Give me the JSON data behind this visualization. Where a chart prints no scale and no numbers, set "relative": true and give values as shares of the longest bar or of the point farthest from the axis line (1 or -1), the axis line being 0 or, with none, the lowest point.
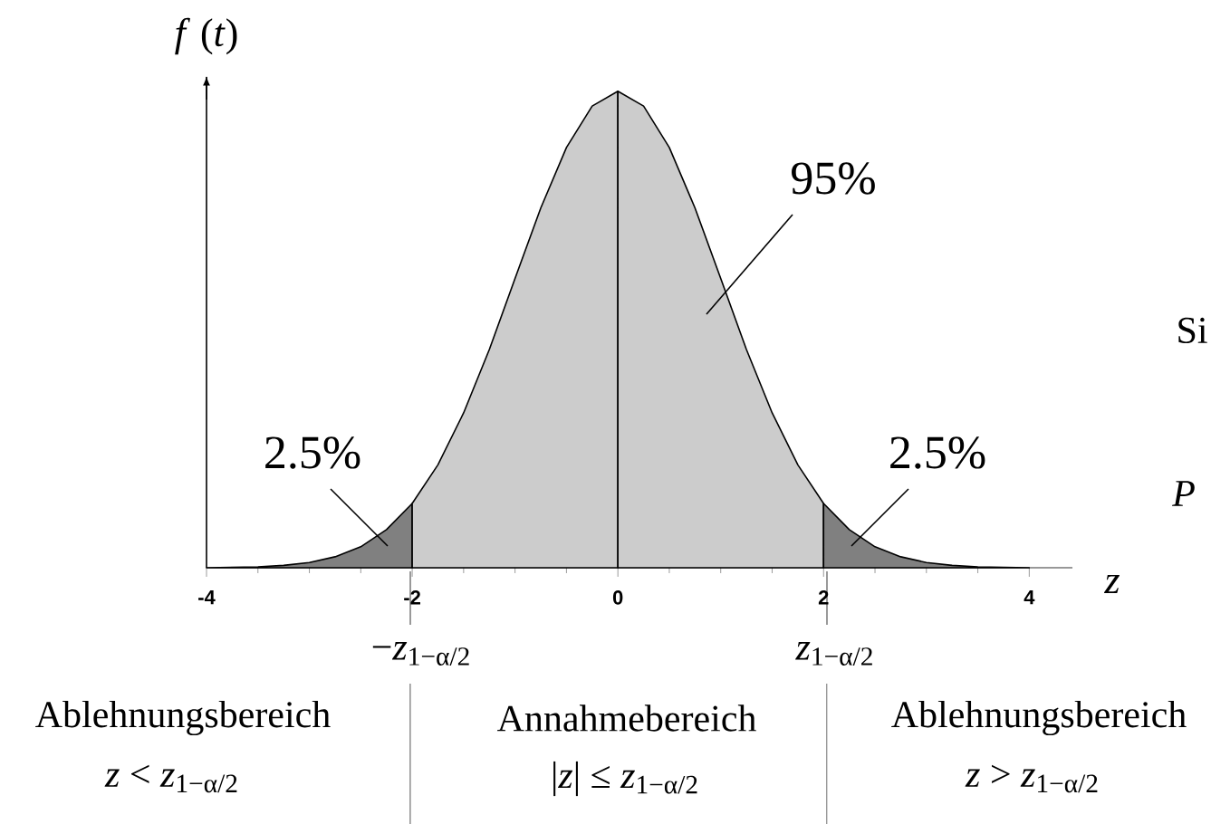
{
  "chart_data": {
    "type": "area",
    "relative": true,
    "xlabel": "*z*",
    "ylabel": "*f* (*t*)",
    "xlim": [
      -4,
      4.42
    ],
    "xticks": [
      -4,
      -2,
      0,
      2,
      4
    ],
    "series": [
      {
        "color": "#808080",
        "x": [
          -4,
          -3.75,
          -3.5,
          -3.25,
          -3,
          -2.75,
          -2.5,
          -2.25,
          -2
        ],
        "values": [
          0.0,
          0.001,
          0.002,
          0.005,
          0.011,
          0.023,
          0.044,
          0.08,
          0.135
        ]
      },
      {
        "color": "#cccccc",
        "x": [
          -2,
          -1.75,
          -1.5,
          -1.25,
          -1,
          -0.75,
          -0.5,
          -0.25,
          0
        ],
        "values": [
          0.135,
          0.216,
          0.325,
          0.458,
          0.607,
          0.755,
          0.882,
          0.969,
          1.0
        ]
      },
      {
        "color": "#cccccc",
        "x": [
          0,
          0.25,
          0.5,
          0.75,
          1,
          1.25,
          1.5,
          1.75,
          2
        ],
        "values": [
          1.0,
          0.969,
          0.882,
          0.755,
          0.607,
          0.458,
          0.325,
          0.216,
          0.135
        ]
      },
      {
        "color": "#808080",
        "x": [
          2,
          2.25,
          2.5,
          2.75,
          3,
          3.25,
          3.5,
          3.75,
          4
        ],
        "values": [
          0.135,
          0.08,
          0.044,
          0.023,
          0.011,
          0.005,
          0.002,
          0.001,
          0.0
        ]
      }
    ],
    "annotations": [
      "95%",
      "2.5%",
      "2.5%",
      "−*z*$_{1−α/2}$",
      "*z*$_{1−α/2}$",
      "Ablehnungsbereich",
      "*z* < *z*$_{1−α/2}$",
      "Annahmebereich",
      "|*z*| ≤ *z*$_{1−α/2}$",
      "Ablehnungsbereich",
      "*z* > *z*$_{1−α/2}$",
      "Si",
      "*P*"
    ]
  }
}
